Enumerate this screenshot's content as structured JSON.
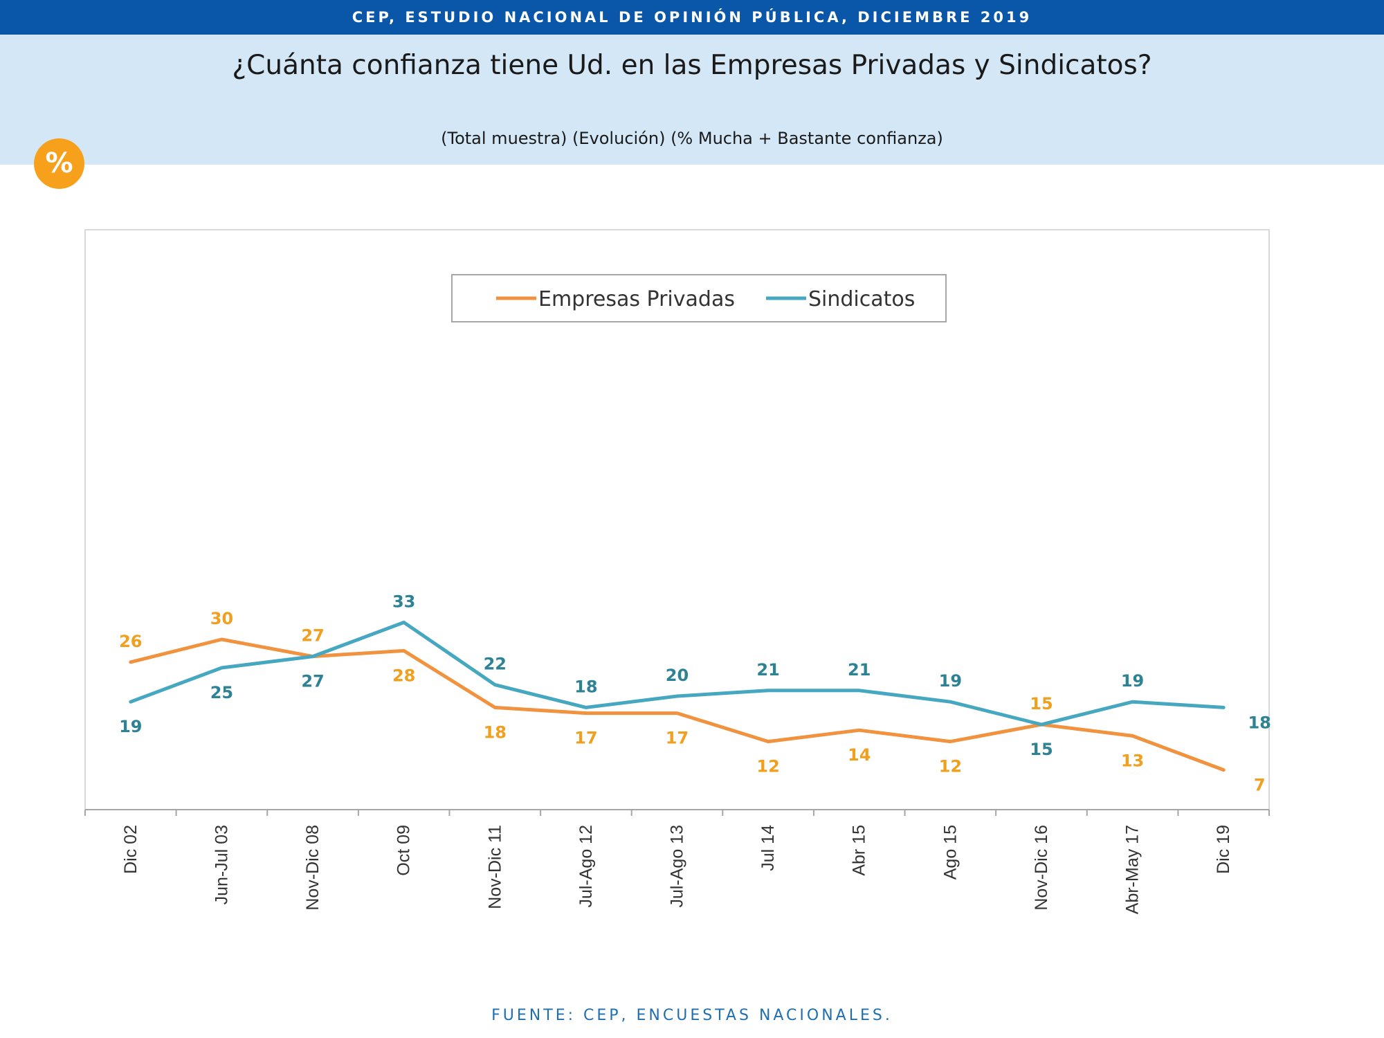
{
  "header": {
    "source_bar": "CEP, ESTUDIO NACIONAL DE OPINIÓN PÚBLICA, DICIEMBRE 2019",
    "title": "¿Cuánta confianza tiene Ud. en las Empresas Privadas y Sindicatos?",
    "subtitle": "(Total muestra) (Evolución) (% Mucha + Bastante confianza)",
    "badge": "%"
  },
  "footer": {
    "source": "FUENTE: CEP, ENCUESTAS NACIONALES."
  },
  "colors": {
    "orange": "#f0923e",
    "orange_label": "#f0a01e",
    "teal": "#46a7c1",
    "teal_label": "#2d8294",
    "topbar": "#0a56a8",
    "band": "#d3e7f6",
    "badge": "#f7a01b"
  },
  "chart_data": {
    "type": "line",
    "categories": [
      "Dic 02",
      "Jun-Jul 03",
      "Nov-Dic 08",
      "Oct 09",
      "Nov-Dic 11",
      "Jul-Ago 12",
      "Jul-Ago 13",
      "Jul 14",
      "Abr 15",
      "Ago 15",
      "Nov-Dic 16",
      "Abr-May 17",
      "Dic 19"
    ],
    "series": [
      {
        "name": "Empresas Privadas",
        "values": [
          26,
          30,
          27,
          28,
          18,
          17,
          17,
          12,
          14,
          12,
          15,
          13,
          7
        ]
      },
      {
        "name": "Sindicatos",
        "values": [
          19,
          25,
          27,
          33,
          22,
          18,
          20,
          21,
          21,
          19,
          15,
          19,
          18
        ]
      }
    ],
    "ylim": [
      0,
      100
    ],
    "grid": false,
    "legend": "top-center"
  }
}
